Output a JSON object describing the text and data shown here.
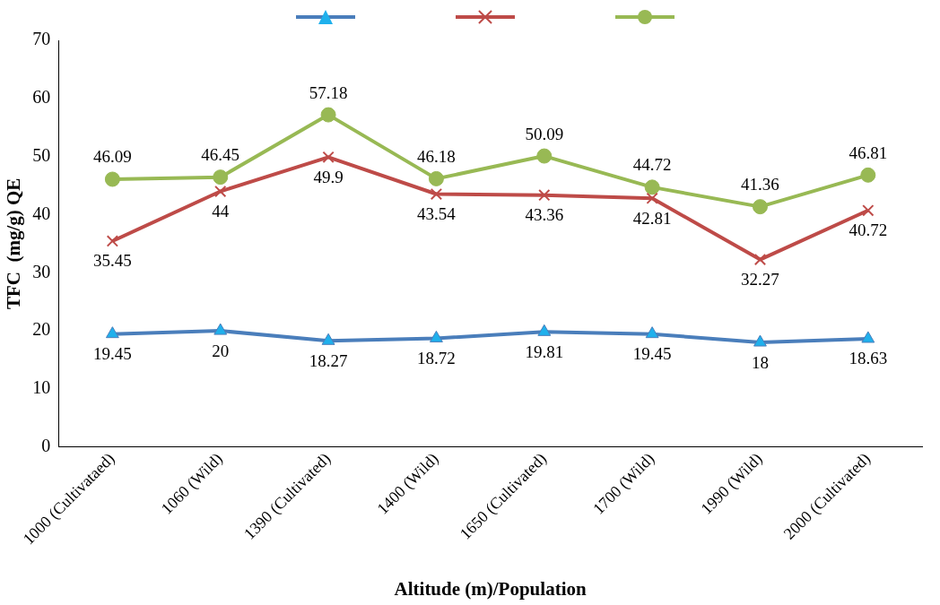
{
  "chart_data": {
    "type": "line",
    "xlabel": "Altitude (m)/Population",
    "ylabel": "TFC  (mg/g) QE",
    "categories": [
      "1000 (Cultivataed)",
      "1060 (Wild)",
      "1390 (Cultivated)",
      "1400 (Wild)",
      "1650 (Cultivated)",
      "1700 (Wild)",
      "1990 (Wild)",
      "2000 (Cultivated)"
    ],
    "series": [
      {
        "color": "#4a7ebb",
        "marker": "triangle",
        "values": [
          19.45,
          20,
          18.27,
          18.72,
          19.81,
          19.45,
          18,
          18.63
        ]
      },
      {
        "color": "#be4b48",
        "marker": "cross",
        "values": [
          35.45,
          44,
          49.9,
          43.54,
          43.36,
          42.81,
          32.27,
          40.72
        ]
      },
      {
        "color": "#98b954",
        "marker": "circle",
        "values": [
          46.09,
          46.45,
          57.18,
          46.18,
          50.09,
          44.72,
          41.36,
          46.81
        ]
      }
    ],
    "ylim": [
      0,
      70
    ],
    "yticks": [
      0,
      10,
      20,
      30,
      40,
      50,
      60,
      70
    ],
    "grid": false,
    "data_labels": true,
    "line_style": "solid"
  }
}
